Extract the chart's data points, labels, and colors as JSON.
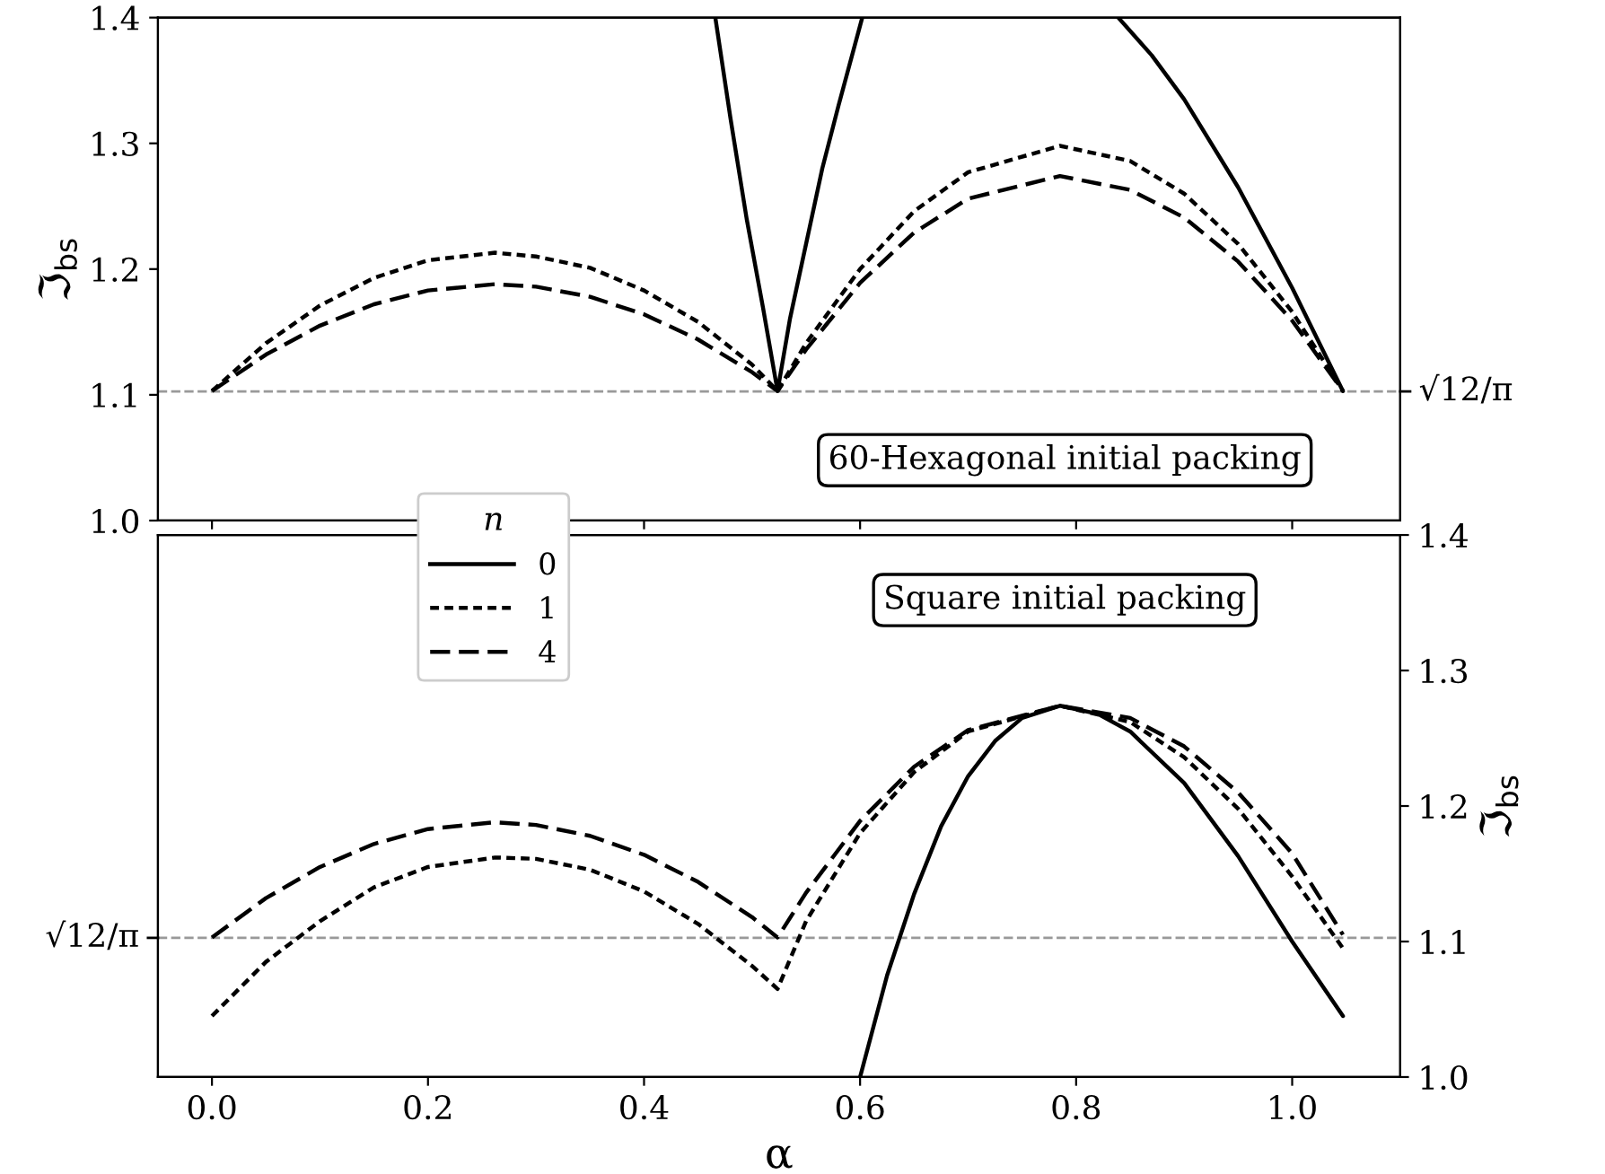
{
  "chart_data": [
    {
      "type": "line",
      "ylabel": "ℑ$_{bs}$",
      "annotations": [
        "60-Hexagonal initial packing"
      ],
      "legend_title": "n",
      "legend": "bottom left",
      "tick_labels": "y",
      "grid": false,
      "marker": "none",
      "xlim": [
        -0.05,
        1.1
      ],
      "xticks": [
        0,
        0.2,
        0.4,
        0.6,
        0.8,
        1
      ],
      "ylim": [
        1.0,
        1.4
      ],
      "yticks": [
        {
          "value": 1,
          "label": "1.0"
        },
        1.1,
        1.2,
        1.3,
        1.4
      ],
      "ref_lines": [
        {
          "axis": "y",
          "value": 1.1027,
          "label": "√12/π",
          "color": "#999999",
          "line_style": "dashed"
        }
      ],
      "series": [
        {
          "name": "0",
          "color": "#000000",
          "line_style": "solid",
          "x": [
            0.466,
            0.48,
            0.495,
            0.51,
            0.5236,
            0.535,
            0.55,
            0.565,
            0.58,
            0.602,
            0.7,
            0.839,
            0.87,
            0.9,
            0.95,
            1.0,
            1.047
          ],
          "values": [
            1.4,
            1.32,
            1.24,
            1.17,
            1.103,
            1.16,
            1.22,
            1.28,
            1.33,
            1.4,
            null,
            1.4,
            1.37,
            1.335,
            1.265,
            1.185,
            1.103
          ]
        },
        {
          "name": "1",
          "color": "#000000",
          "line_style": "dotted",
          "x": [
            0,
            0.05,
            0.1,
            0.15,
            0.2,
            0.262,
            0.3,
            0.35,
            0.4,
            0.45,
            0.5,
            0.5236,
            0.55,
            0.6,
            0.65,
            0.7,
            0.785,
            0.85,
            0.9,
            0.95,
            1.0,
            1.047
          ],
          "values": [
            1.103,
            1.141,
            1.171,
            1.193,
            1.207,
            1.213,
            1.21,
            1.201,
            1.183,
            1.158,
            1.124,
            1.103,
            1.141,
            1.2,
            1.246,
            1.277,
            1.298,
            1.286,
            1.26,
            1.22,
            1.166,
            1.103
          ]
        },
        {
          "name": "4",
          "color": "#000000",
          "line_style": "dashed",
          "x": [
            0,
            0.05,
            0.1,
            0.15,
            0.2,
            0.262,
            0.3,
            0.35,
            0.4,
            0.45,
            0.5,
            0.5236,
            0.55,
            0.6,
            0.65,
            0.7,
            0.785,
            0.85,
            0.9,
            0.95,
            1.0,
            1.047
          ],
          "values": [
            1.103,
            1.132,
            1.155,
            1.172,
            1.183,
            1.188,
            1.186,
            1.178,
            1.164,
            1.144,
            1.118,
            1.103,
            1.136,
            1.189,
            1.229,
            1.256,
            1.274,
            1.263,
            1.241,
            1.206,
            1.159,
            1.103
          ]
        }
      ]
    },
    {
      "type": "line",
      "xlabel": "α",
      "y2label": "ℑ$_{bs}$",
      "annotations": [
        "Square initial packing"
      ],
      "grid": false,
      "marker": "none",
      "xlim": [
        -0.05,
        1.1
      ],
      "xticks": [
        {
          "value": 0,
          "label": "0.0"
        },
        0.2,
        0.4,
        0.6,
        0.8,
        {
          "value": 1,
          "label": "1.0"
        }
      ],
      "y2lim": [
        1.0,
        1.4
      ],
      "y2ticks": [
        {
          "value": 1,
          "label": "1.0"
        },
        1.1,
        1.2,
        1.3,
        1.4
      ],
      "ref_lines": [
        {
          "axis": "y2",
          "value": 1.1027,
          "label": "√12/π",
          "color": "#999999",
          "line_style": "dashed"
        }
      ],
      "series": [
        {
          "axis": "y2",
          "color": "#000000",
          "line_style": "solid",
          "x": [
            0.6,
            0.625,
            0.65,
            0.675,
            0.7,
            0.725,
            0.75,
            0.785,
            0.82,
            0.85,
            0.9,
            0.95,
            1.0,
            1.047
          ],
          "values": [
            1.0,
            1.075,
            1.135,
            1.185,
            1.222,
            1.248,
            1.265,
            1.274,
            1.268,
            1.255,
            1.217,
            1.163,
            1.1,
            1.045
          ]
        },
        {
          "axis": "y2",
          "color": "#000000",
          "line_style": "dotted",
          "x": [
            0,
            0.05,
            0.1,
            0.15,
            0.2,
            0.262,
            0.3,
            0.35,
            0.4,
            0.45,
            0.5,
            0.5236,
            0.55,
            0.6,
            0.65,
            0.7,
            0.785,
            0.85,
            0.9,
            0.95,
            1.0,
            1.047
          ],
          "values": [
            1.045,
            1.085,
            1.115,
            1.14,
            1.155,
            1.162,
            1.161,
            1.153,
            1.137,
            1.113,
            1.082,
            1.065,
            1.115,
            1.18,
            1.225,
            1.255,
            1.274,
            1.262,
            1.236,
            1.198,
            1.148,
            1.095
          ]
        },
        {
          "axis": "y2",
          "color": "#000000",
          "line_style": "dashed",
          "x": [
            0,
            0.05,
            0.1,
            0.15,
            0.2,
            0.262,
            0.3,
            0.35,
            0.4,
            0.45,
            0.5,
            0.5236,
            0.55,
            0.6,
            0.65,
            0.7,
            0.785,
            0.85,
            0.9,
            0.95,
            1.0,
            1.047
          ],
          "values": [
            1.103,
            1.132,
            1.155,
            1.172,
            1.183,
            1.188,
            1.186,
            1.178,
            1.164,
            1.144,
            1.118,
            1.103,
            1.136,
            1.189,
            1.229,
            1.256,
            1.274,
            1.265,
            1.244,
            1.21,
            1.165,
            1.105
          ]
        }
      ]
    }
  ]
}
